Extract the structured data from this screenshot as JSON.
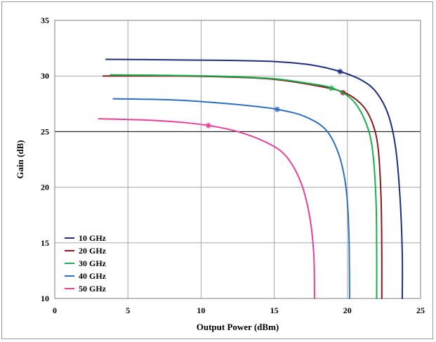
{
  "chart_data": {
    "type": "line",
    "title": "",
    "xlabel": "Output Power (dBm)",
    "ylabel": "Gain (dB)",
    "xlim": [
      0,
      25
    ],
    "ylim": [
      10,
      35
    ],
    "xticks": [
      0,
      5,
      10,
      15,
      20,
      25
    ],
    "yticks": [
      10,
      15,
      20,
      25,
      30,
      35
    ],
    "grid": true,
    "legend_position": "bottom-left",
    "series": [
      {
        "name": "10 GHz",
        "color": "#1f2e7a",
        "points": [
          [
            3.5,
            31.5
          ],
          [
            8,
            31.45
          ],
          [
            12,
            31.4
          ],
          [
            15,
            31.3
          ],
          [
            17.5,
            31.0
          ],
          [
            19.5,
            30.4
          ],
          [
            21,
            29.6
          ],
          [
            22,
            28.5
          ],
          [
            22.8,
            26.5
          ],
          [
            23.3,
            23.5
          ],
          [
            23.6,
            19.0
          ],
          [
            23.75,
            14.0
          ],
          [
            23.75,
            10.0
          ]
        ],
        "marker": [
          19.5,
          30.4
        ]
      },
      {
        "name": "20 GHz",
        "color": "#8b1a1a",
        "points": [
          [
            3.3,
            30.0
          ],
          [
            8,
            30.0
          ],
          [
            12,
            29.9
          ],
          [
            15,
            29.7
          ],
          [
            18,
            29.1
          ],
          [
            19.8,
            28.5
          ],
          [
            21,
            27.4
          ],
          [
            21.7,
            25.8
          ],
          [
            22.1,
            23.5
          ],
          [
            22.3,
            19.0
          ],
          [
            22.35,
            14.0
          ],
          [
            22.35,
            10.0
          ]
        ],
        "marker": [
          19.7,
          28.5
        ]
      },
      {
        "name": "30 GHz",
        "color": "#17b04f",
        "points": [
          [
            3.8,
            30.1
          ],
          [
            8,
            30.05
          ],
          [
            12,
            29.95
          ],
          [
            15,
            29.75
          ],
          [
            17.5,
            29.3
          ],
          [
            19,
            28.9
          ],
          [
            20.3,
            27.9
          ],
          [
            21.2,
            26.0
          ],
          [
            21.7,
            23.5
          ],
          [
            21.95,
            19.0
          ],
          [
            22.0,
            14.0
          ],
          [
            22.0,
            10.0
          ]
        ],
        "marker": [
          18.9,
          28.9
        ]
      },
      {
        "name": "40 GHz",
        "color": "#2f6fbf",
        "points": [
          [
            4.0,
            27.95
          ],
          [
            8,
            27.85
          ],
          [
            11,
            27.6
          ],
          [
            13.5,
            27.3
          ],
          [
            15.2,
            27.0
          ],
          [
            17,
            26.4
          ],
          [
            18.5,
            25.2
          ],
          [
            19.4,
            23.0
          ],
          [
            19.9,
            20.0
          ],
          [
            20.1,
            16.0
          ],
          [
            20.15,
            10.0
          ]
        ],
        "marker": [
          15.2,
          27.0
        ]
      },
      {
        "name": "50 GHz",
        "color": "#e8409a",
        "points": [
          [
            3.0,
            26.15
          ],
          [
            6,
            26.05
          ],
          [
            8.5,
            25.85
          ],
          [
            10.5,
            25.55
          ],
          [
            12.5,
            25.0
          ],
          [
            14.5,
            24.0
          ],
          [
            15.8,
            22.8
          ],
          [
            16.8,
            20.5
          ],
          [
            17.4,
            17.5
          ],
          [
            17.7,
            14.0
          ],
          [
            17.75,
            10.0
          ]
        ],
        "marker": [
          10.5,
          25.55
        ]
      }
    ]
  }
}
